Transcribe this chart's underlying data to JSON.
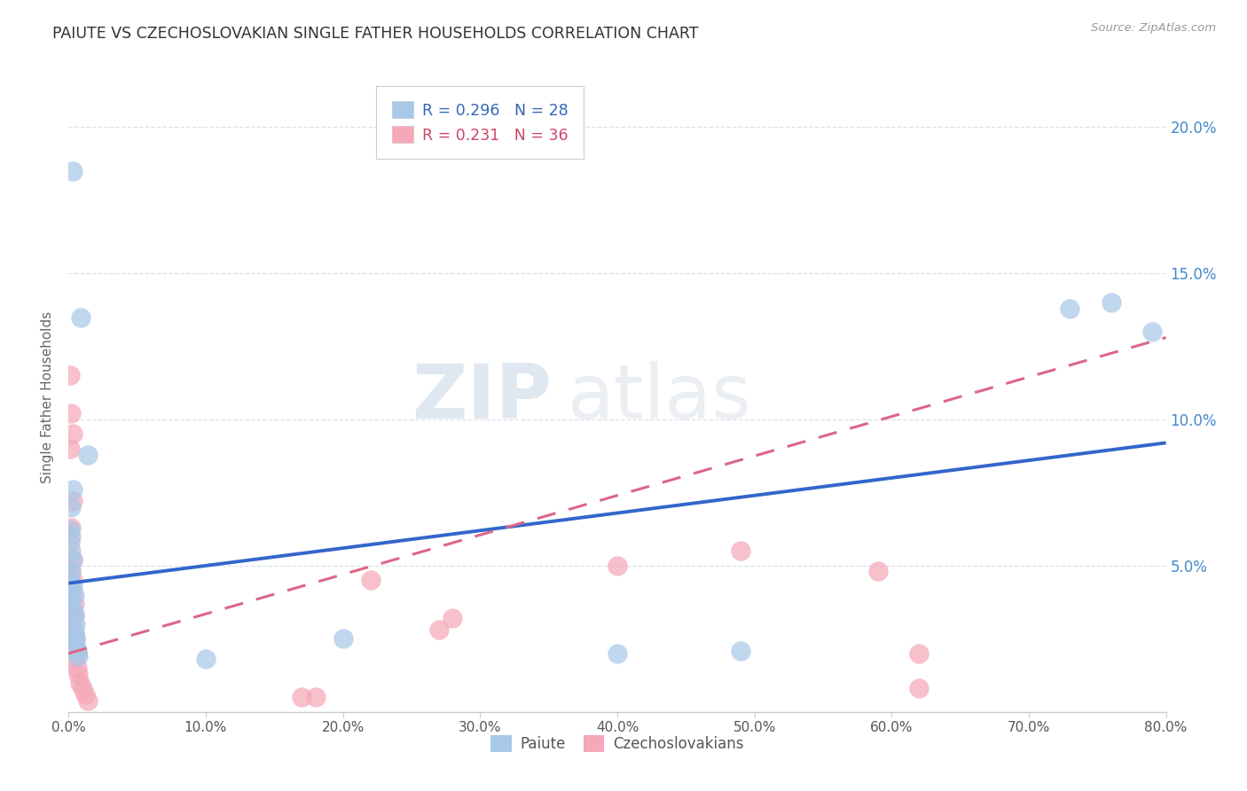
{
  "title": "PAIUTE VS CZECHOSLOVAKIAN SINGLE FATHER HOUSEHOLDS CORRELATION CHART",
  "source": "Source: ZipAtlas.com",
  "ylabel": "Single Father Households",
  "paiute_scatter": [
    [
      0.003,
      0.185
    ],
    [
      0.009,
      0.135
    ],
    [
      0.014,
      0.088
    ],
    [
      0.003,
      0.076
    ],
    [
      0.002,
      0.07
    ],
    [
      0.001,
      0.062
    ],
    [
      0.002,
      0.06
    ],
    [
      0.002,
      0.055
    ],
    [
      0.003,
      0.052
    ],
    [
      0.002,
      0.048
    ],
    [
      0.001,
      0.045
    ],
    [
      0.003,
      0.043
    ],
    [
      0.004,
      0.04
    ],
    [
      0.002,
      0.038
    ],
    [
      0.003,
      0.035
    ],
    [
      0.004,
      0.033
    ],
    [
      0.005,
      0.03
    ],
    [
      0.004,
      0.027
    ],
    [
      0.005,
      0.025
    ],
    [
      0.005,
      0.023
    ],
    [
      0.006,
      0.021
    ],
    [
      0.007,
      0.019
    ],
    [
      0.1,
      0.018
    ],
    [
      0.2,
      0.025
    ],
    [
      0.4,
      0.02
    ],
    [
      0.49,
      0.021
    ],
    [
      0.73,
      0.138
    ],
    [
      0.76,
      0.14
    ],
    [
      0.79,
      0.13
    ]
  ],
  "czech_scatter": [
    [
      0.001,
      0.115
    ],
    [
      0.002,
      0.102
    ],
    [
      0.003,
      0.095
    ],
    [
      0.001,
      0.09
    ],
    [
      0.003,
      0.072
    ],
    [
      0.002,
      0.063
    ],
    [
      0.001,
      0.058
    ],
    [
      0.003,
      0.052
    ],
    [
      0.002,
      0.048
    ],
    [
      0.003,
      0.045
    ],
    [
      0.002,
      0.042
    ],
    [
      0.003,
      0.04
    ],
    [
      0.004,
      0.037
    ],
    [
      0.003,
      0.035
    ],
    [
      0.004,
      0.033
    ],
    [
      0.003,
      0.03
    ],
    [
      0.004,
      0.027
    ],
    [
      0.005,
      0.025
    ],
    [
      0.005,
      0.022
    ],
    [
      0.006,
      0.02
    ],
    [
      0.004,
      0.018
    ],
    [
      0.006,
      0.015
    ],
    [
      0.007,
      0.013
    ],
    [
      0.008,
      0.01
    ],
    [
      0.01,
      0.008
    ],
    [
      0.012,
      0.006
    ],
    [
      0.014,
      0.004
    ],
    [
      0.17,
      0.005
    ],
    [
      0.22,
      0.045
    ],
    [
      0.27,
      0.028
    ],
    [
      0.28,
      0.032
    ],
    [
      0.18,
      0.005
    ],
    [
      0.4,
      0.05
    ],
    [
      0.49,
      0.055
    ],
    [
      0.59,
      0.048
    ],
    [
      0.62,
      0.008
    ],
    [
      0.62,
      0.02
    ]
  ],
  "paiute_line_x": [
    0.0,
    0.8
  ],
  "paiute_line_y": [
    0.044,
    0.092
  ],
  "czech_line_x": [
    0.0,
    0.8
  ],
  "czech_line_y": [
    0.02,
    0.128
  ],
  "xlim": [
    0.0,
    0.8
  ],
  "ylim": [
    0.0,
    0.215
  ],
  "scatter_blue": "#a8c8e8",
  "scatter_pink": "#f4a8b8",
  "line_blue": "#3366cc",
  "line_pink": "#dd6688",
  "grid_color": "#d8dde8",
  "bg_color": "#ffffff",
  "title_color": "#333333",
  "source_color": "#999999",
  "ytick_color": "#4488cc",
  "xtick_color": "#555555"
}
